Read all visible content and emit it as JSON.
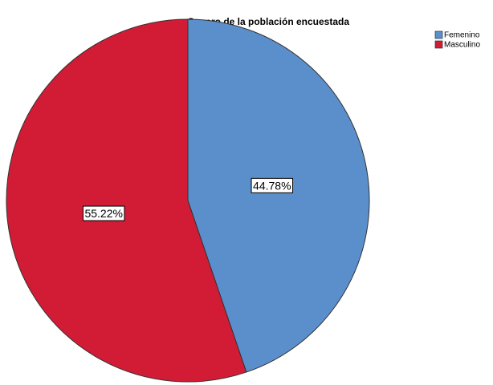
{
  "chart_data": {
    "type": "pie",
    "title": "Genero de la población encuestada",
    "categories": [
      "Femenino",
      "Masculino"
    ],
    "values": [
      44.78,
      55.22
    ],
    "value_labels": [
      "44.78%",
      "55.22%"
    ],
    "colors": [
      "#5b8fcc",
      "#d21b35"
    ],
    "legend": "top-right"
  }
}
